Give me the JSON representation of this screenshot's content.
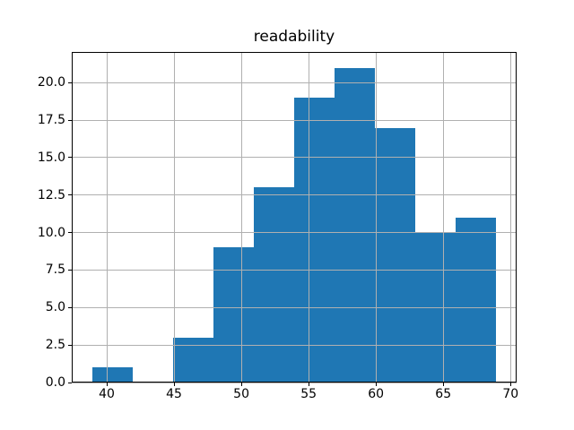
{
  "chart_data": {
    "type": "histogram",
    "title": "readability",
    "xlabel": "",
    "ylabel": "",
    "bin_edges": [
      38.9,
      41.9,
      44.9,
      47.9,
      50.9,
      53.9,
      56.9,
      59.9,
      62.9,
      65.9,
      68.9
    ],
    "counts": [
      1,
      0,
      3,
      9,
      13,
      19,
      21,
      17,
      10,
      11
    ],
    "xticks": [
      40,
      45,
      50,
      55,
      60,
      65,
      70
    ],
    "yticks": [
      0,
      2.5,
      5,
      7.5,
      10,
      12.5,
      15,
      17.5,
      20
    ],
    "xtick_labels": [
      "40",
      "45",
      "50",
      "55",
      "60",
      "65",
      "70"
    ],
    "ytick_labels": [
      "0.0",
      "2.5",
      "5.0",
      "7.5",
      "10.0",
      "12.5",
      "15.0",
      "17.5",
      "20.0"
    ],
    "xlim": [
      37.4,
      70.45
    ],
    "ylim": [
      0,
      22.05
    ],
    "grid": true,
    "grid_over_bars": true,
    "legend": false,
    "colors": {
      "bar": "#1f77b4",
      "grid": "#b0b0b0",
      "spine": "#000000",
      "text": "#000000",
      "background": "#ffffff"
    }
  }
}
